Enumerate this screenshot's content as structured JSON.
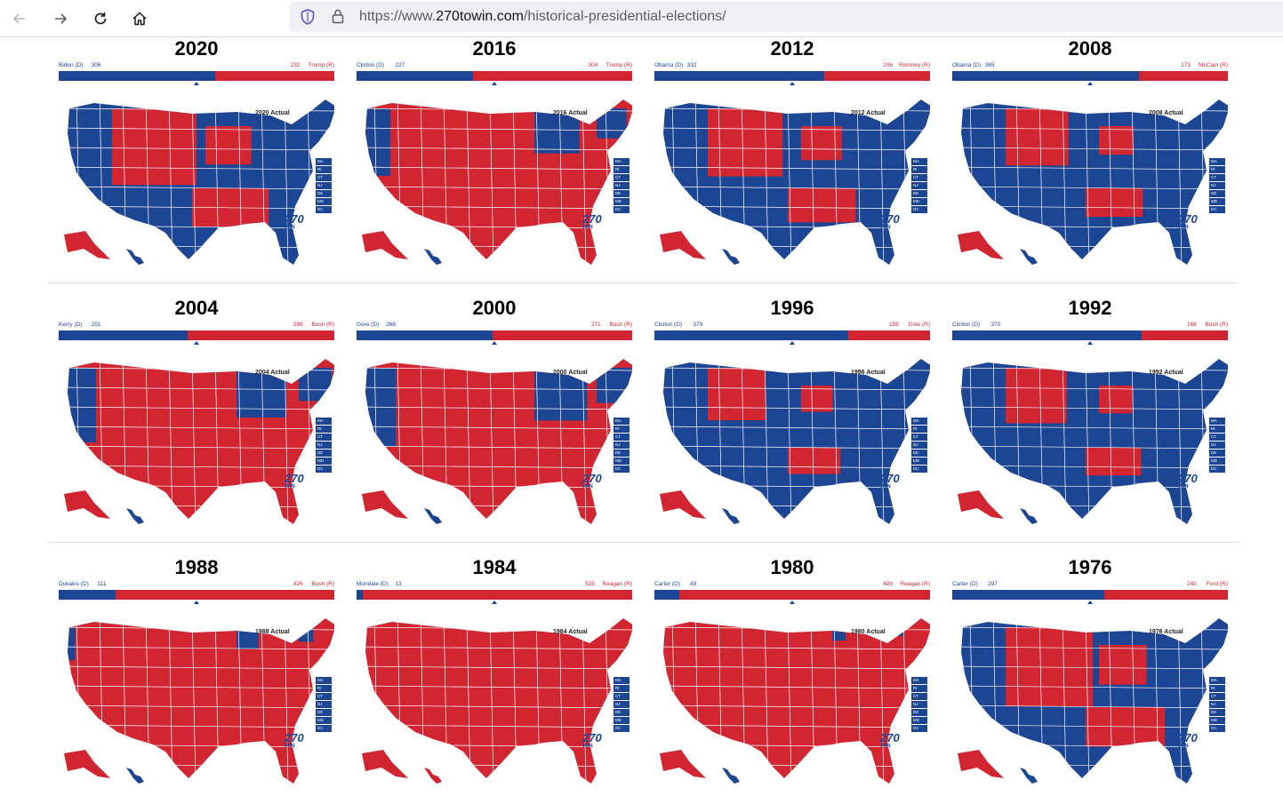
{
  "browser": {
    "url_scheme": "https://www.",
    "url_host": "270towin.com",
    "url_path": "/historical-presidential-elections/"
  },
  "colors": {
    "dem": "#1c4594",
    "rep": "#d22532"
  },
  "elections": [
    {
      "year": "2020",
      "dem_name": "Biden (D)",
      "dem_ev": 306,
      "rep_name": "Trump (R)",
      "rep_ev": 232,
      "caption": "2020 Actual",
      "winner": "D"
    },
    {
      "year": "2016",
      "dem_name": "Clinton (D)",
      "dem_ev": 227,
      "rep_name": "Trump (R)",
      "rep_ev": 304,
      "caption": "2016 Actual",
      "winner": "R"
    },
    {
      "year": "2012",
      "dem_name": "Obama (D)",
      "dem_ev": 332,
      "rep_name": "Romney (R)",
      "rep_ev": 206,
      "caption": "2012 Actual",
      "winner": "D"
    },
    {
      "year": "2008",
      "dem_name": "Obama (D)",
      "dem_ev": 365,
      "rep_name": "McCain (R)",
      "rep_ev": 173,
      "caption": "2008 Actual",
      "winner": "D"
    },
    {
      "year": "2004",
      "dem_name": "Kerry (D)",
      "dem_ev": 251,
      "rep_name": "Bush (R)",
      "rep_ev": 286,
      "caption": "2004 Actual",
      "winner": "R"
    },
    {
      "year": "2000",
      "dem_name": "Gore (D)",
      "dem_ev": 266,
      "rep_name": "Bush (R)",
      "rep_ev": 271,
      "caption": "2000 Actual",
      "winner": "R"
    },
    {
      "year": "1996",
      "dem_name": "Clinton (D)",
      "dem_ev": 379,
      "rep_name": "Dole (R)",
      "rep_ev": 159,
      "caption": "1996 Actual",
      "winner": "D"
    },
    {
      "year": "1992",
      "dem_name": "Clinton (D)",
      "dem_ev": 370,
      "rep_name": "Bush (R)",
      "rep_ev": 168,
      "caption": "1992 Actual",
      "winner": "D"
    },
    {
      "year": "1988",
      "dem_name": "Dukakis (D)",
      "dem_ev": 111,
      "rep_name": "Bush (R)",
      "rep_ev": 426,
      "caption": "1988 Actual",
      "winner": "R"
    },
    {
      "year": "1984",
      "dem_name": "Mondale (D)",
      "dem_ev": 13,
      "rep_name": "Reagan (R)",
      "rep_ev": 525,
      "caption": "1984 Actual",
      "winner": "R"
    },
    {
      "year": "1980",
      "dem_name": "Carter (D)",
      "dem_ev": 49,
      "rep_name": "Reagan (R)",
      "rep_ev": 489,
      "caption": "1980 Actual",
      "winner": "R"
    },
    {
      "year": "1976",
      "dem_name": "Carter (D)",
      "dem_ev": 297,
      "rep_name": "Ford (R)",
      "rep_ev": 240,
      "caption": "1976 Actual",
      "winner": "D"
    }
  ],
  "logo": {
    "number": "270",
    "word": "WIN"
  },
  "legend_states": [
    "MA",
    "RI",
    "CT",
    "NJ",
    "DE",
    "MD",
    "DC"
  ],
  "icons": {
    "back": "arrow-left-icon",
    "forward": "arrow-right-icon",
    "reload": "reload-icon",
    "home": "home-icon",
    "shield": "shield-icon",
    "lock": "lock-icon"
  }
}
